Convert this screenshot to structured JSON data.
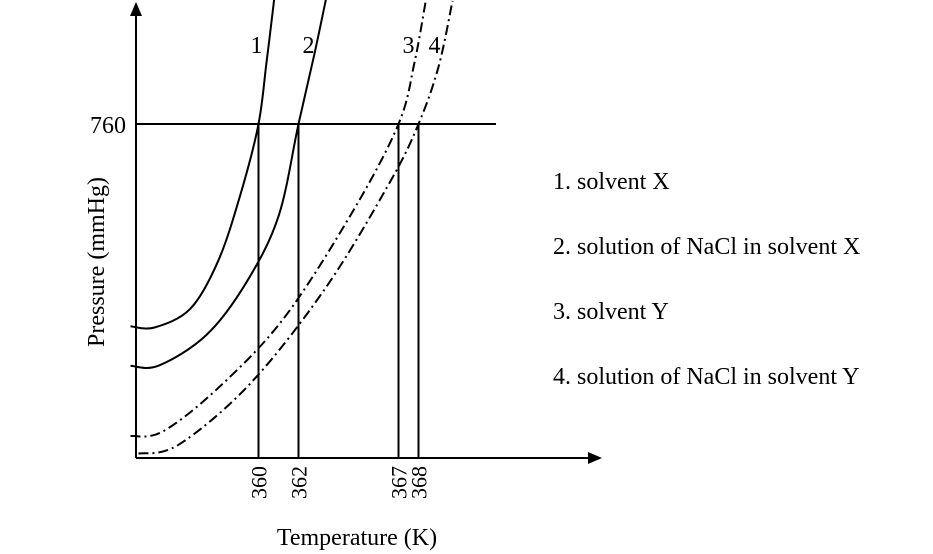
{
  "chart_data": {
    "type": "line",
    "xlabel": "Temperature (K)",
    "ylabel": "Pressure (mmHg)",
    "y_marked_tick": 760,
    "x_marked_ticks": [
      360,
      362,
      367,
      368
    ],
    "series": [
      {
        "name": "1",
        "line_style": "solid",
        "boiling_point": 360,
        "points": [
          [
            353.6,
            300
          ],
          [
            354.8,
            297
          ],
          [
            356.6,
            340
          ],
          [
            358.0,
            450
          ],
          [
            359.1,
            600
          ],
          [
            360,
            760
          ],
          [
            360.4,
            900
          ],
          [
            360.8,
            1050
          ]
        ]
      },
      {
        "name": "2",
        "line_style": "solid",
        "boiling_point": 362,
        "points": [
          [
            353.6,
            210
          ],
          [
            355.0,
            210
          ],
          [
            357.4,
            280
          ],
          [
            359.4,
            400
          ],
          [
            361.0,
            550
          ],
          [
            362,
            760
          ],
          [
            362.8,
            920
          ],
          [
            363.4,
            1050
          ]
        ]
      },
      {
        "name": "3",
        "line_style": "dash-dot",
        "boiling_point": 367,
        "points": [
          [
            353.6,
            50
          ],
          [
            355.2,
            60
          ],
          [
            358.0,
            160
          ],
          [
            361.3,
            320
          ],
          [
            364.7,
            560
          ],
          [
            367,
            760
          ],
          [
            367.8,
            900
          ],
          [
            368.4,
            1050
          ]
        ]
      },
      {
        "name": "4",
        "line_style": "dash-dot",
        "boiling_point": 368,
        "points": [
          [
            354.0,
            10
          ],
          [
            356.0,
            30
          ],
          [
            359.6,
            170
          ],
          [
            363.4,
            390
          ],
          [
            366.6,
            630
          ],
          [
            368,
            760
          ],
          [
            369.0,
            890
          ],
          [
            369.7,
            1040
          ]
        ]
      }
    ],
    "legend": [
      "1. solvent X",
      "2. solution of NaCl in solvent X",
      "3. solvent Y",
      "4. solution of NaCl in solvent Y"
    ],
    "legend_placement": "right"
  }
}
